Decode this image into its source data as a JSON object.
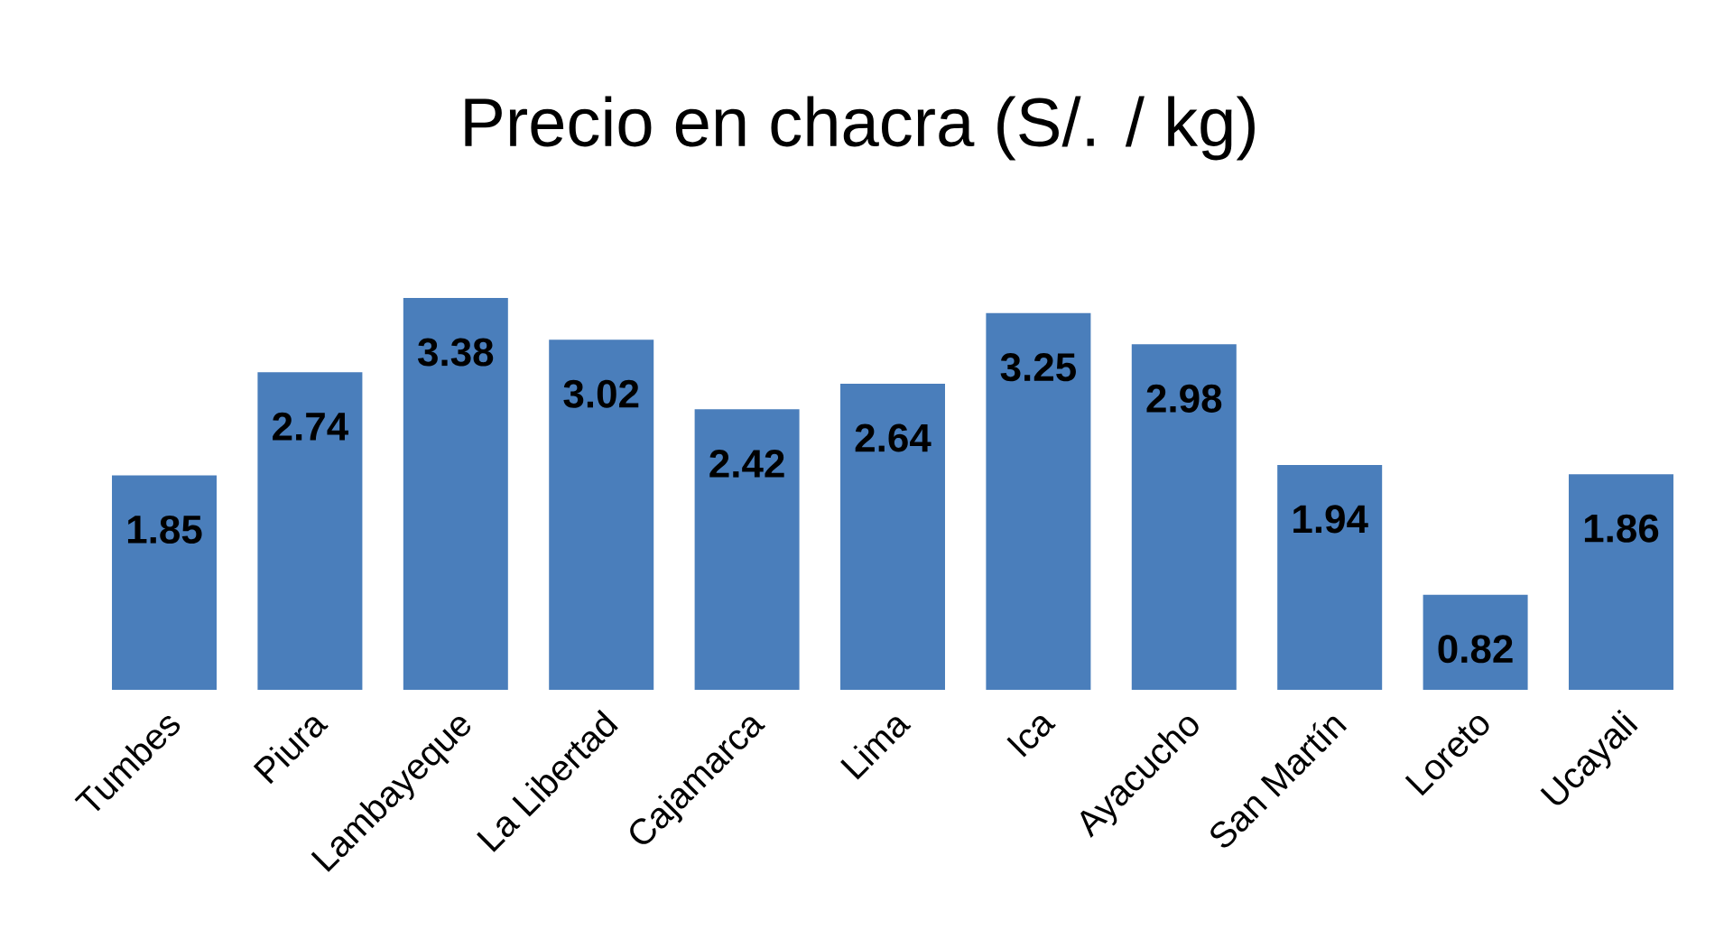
{
  "chart_data": {
    "type": "bar",
    "title": "Precio en chacra (S/. / kg)",
    "categories": [
      "Tumbes",
      "Piura",
      "Lambayeque",
      "La Libertad",
      "Cajamarca",
      "Lima",
      "Ica",
      "Ayacucho",
      "San Martín",
      "Loreto",
      "Ucayali"
    ],
    "values": [
      1.85,
      2.74,
      3.38,
      3.02,
      2.42,
      2.64,
      3.25,
      2.98,
      1.94,
      0.82,
      1.86
    ],
    "color": "#4a7ebb",
    "data_labels": true
  }
}
